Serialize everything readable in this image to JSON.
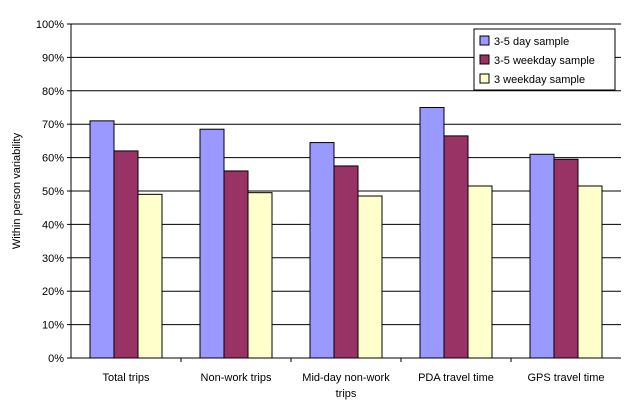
{
  "chart_data": {
    "type": "bar",
    "ylabel": "Within person variability",
    "ylim": [
      0,
      100
    ],
    "ytick_step": 10,
    "ytick_suffix": "%",
    "grid": true,
    "legend_position": "top-right",
    "categories": [
      [
        "Total trips"
      ],
      [
        "Non-work trips"
      ],
      [
        "Mid-day non-work",
        "trips"
      ],
      [
        "PDA travel time"
      ],
      [
        "GPS travel time"
      ]
    ],
    "series": [
      {
        "name": "3-5 day sample",
        "color": "#9999ff",
        "values": [
          71,
          68.5,
          64.5,
          75,
          61
        ]
      },
      {
        "name": "3-5 weekday sample",
        "color": "#993366",
        "values": [
          62,
          56,
          57.5,
          66.5,
          59.5
        ]
      },
      {
        "name": "3 weekday sample",
        "color": "#ffffcc",
        "values": [
          49,
          49.5,
          48.5,
          51.5,
          51.5
        ]
      }
    ]
  }
}
